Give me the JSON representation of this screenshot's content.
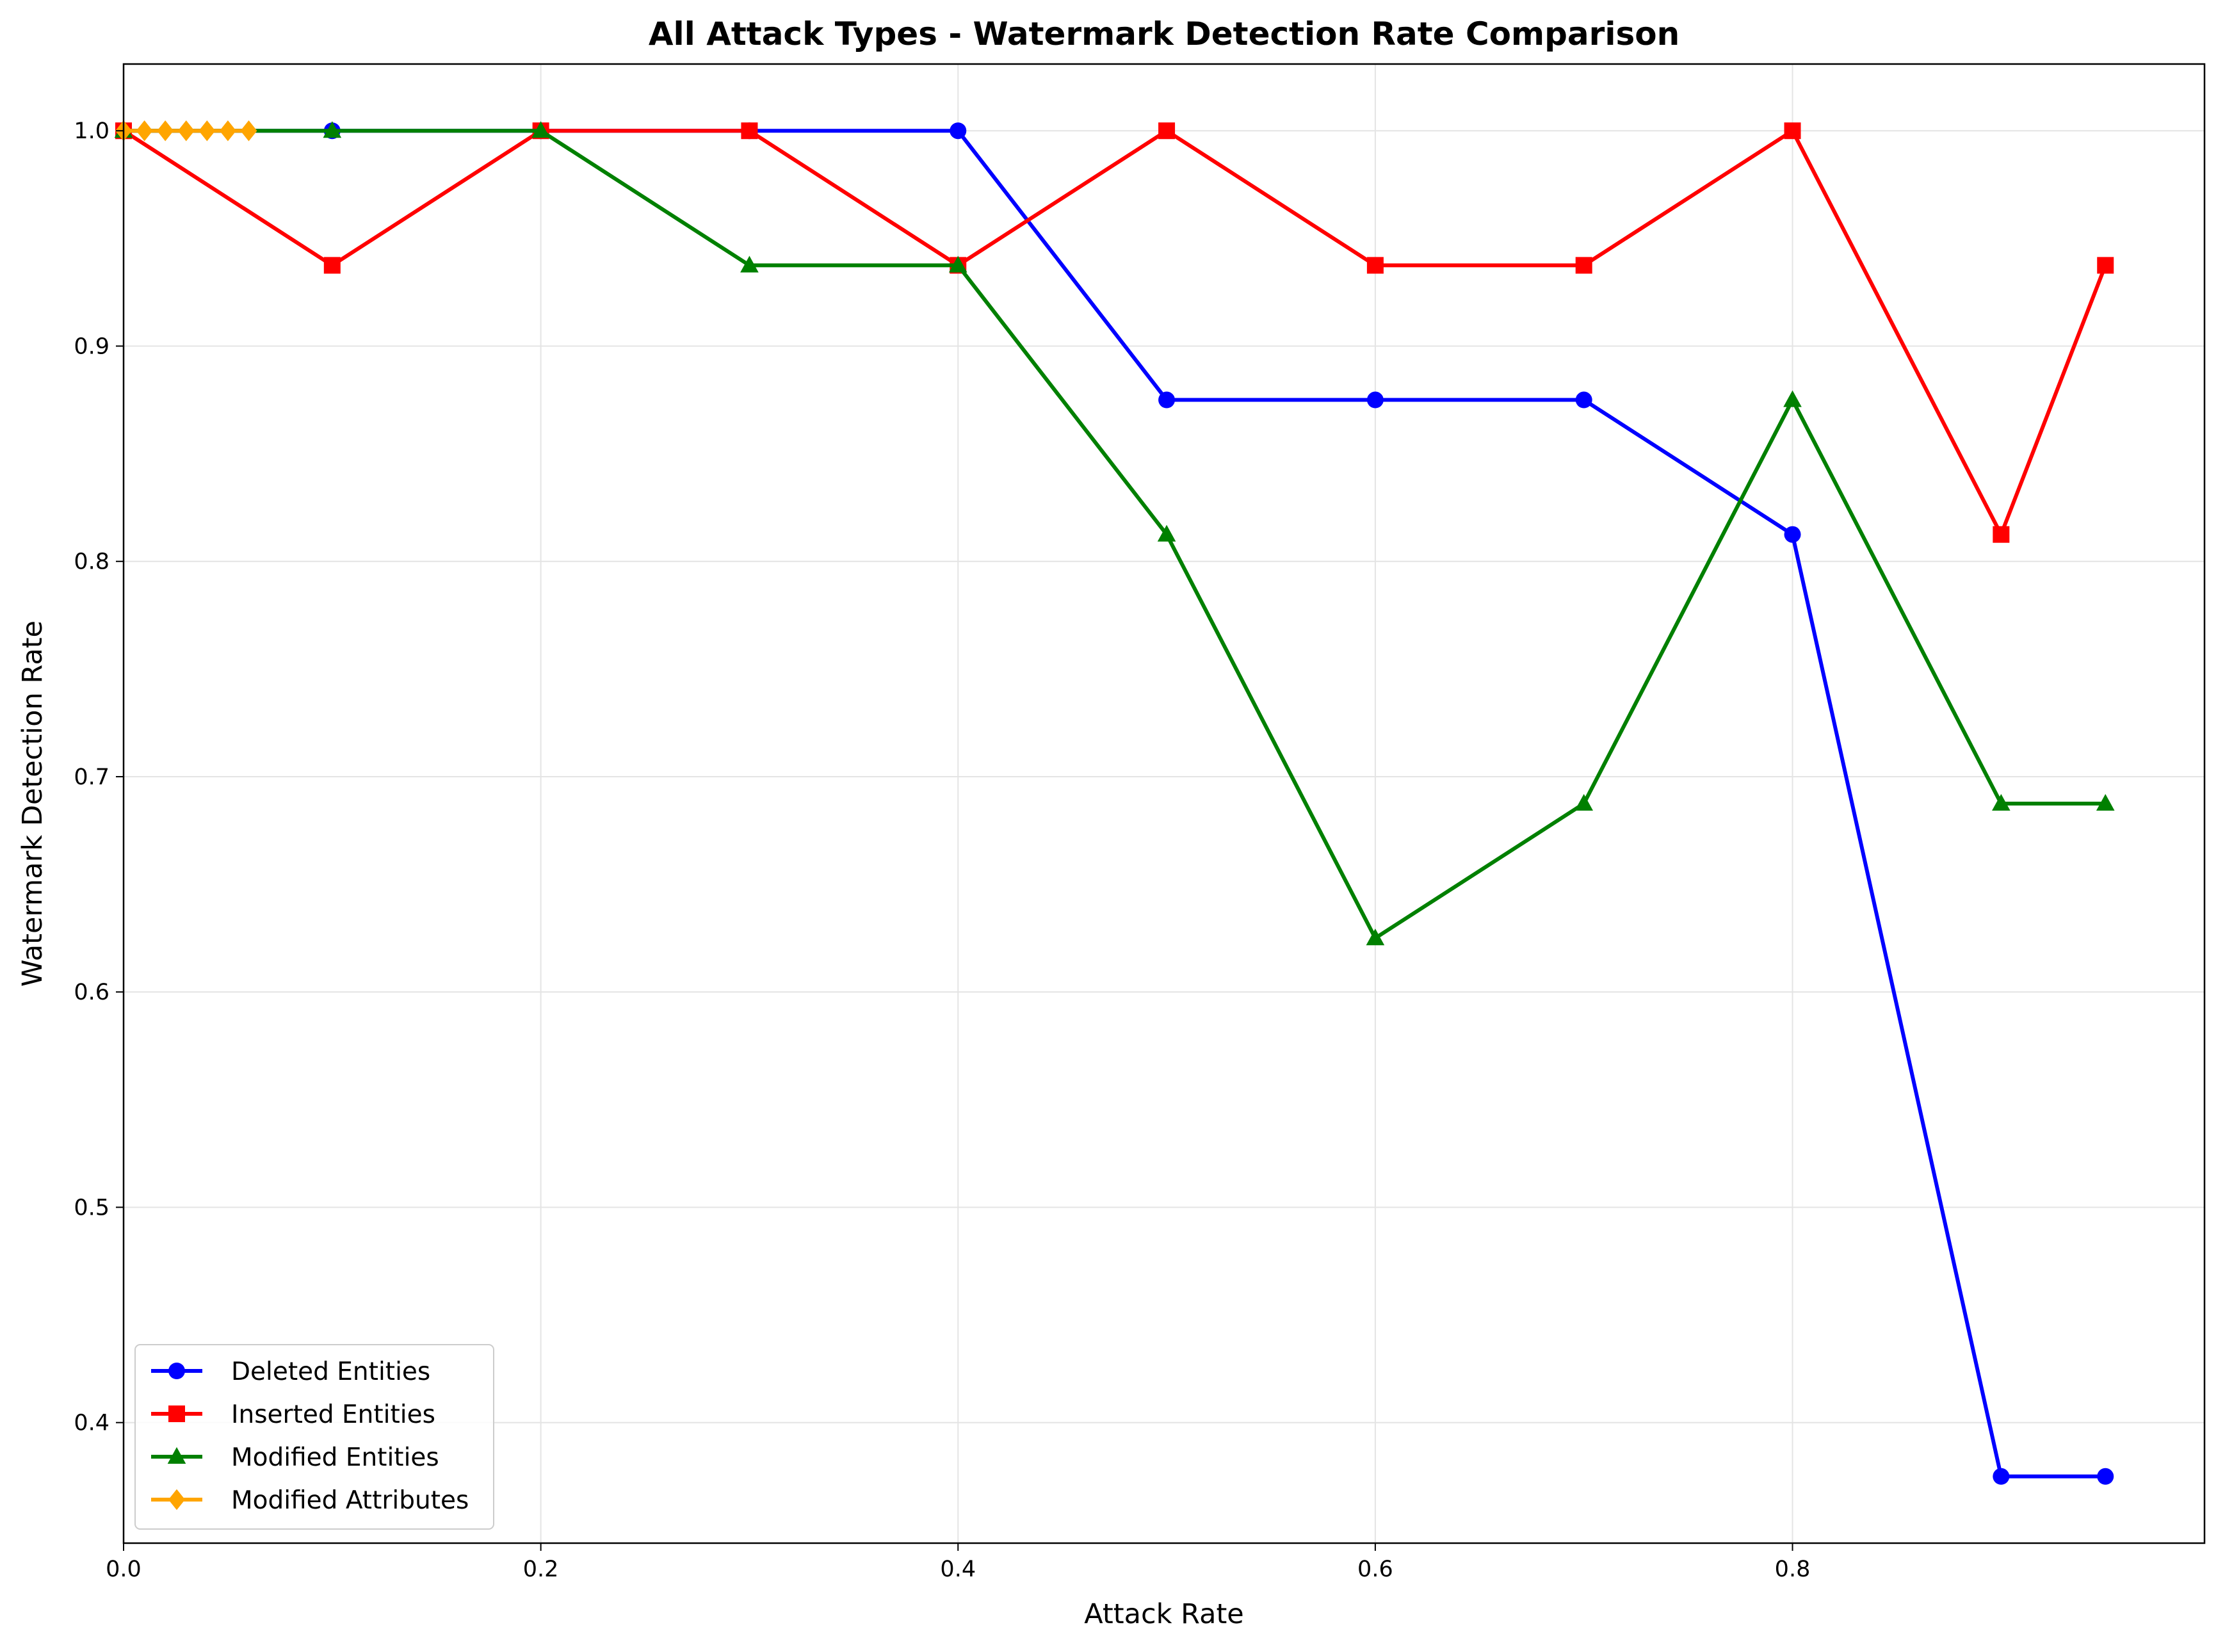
{
  "chart_data": {
    "type": "line",
    "title": "All Attack Types - Watermark Detection Rate Comparison",
    "xlabel": "Attack Rate",
    "ylabel": "Watermark Detection Rate",
    "xlim": [
      0.0,
      0.9975
    ],
    "ylim": [
      0.344,
      1.031
    ],
    "xticks": [
      0.0,
      0.2,
      0.4,
      0.6,
      0.8
    ],
    "xtick_labels": [
      "0.0",
      "0.2",
      "0.4",
      "0.6",
      "0.8"
    ],
    "yticks": [
      0.4,
      0.5,
      0.6,
      0.7,
      0.8,
      0.9,
      1.0
    ],
    "ytick_labels": [
      "0.4",
      "0.5",
      "0.6",
      "0.7",
      "0.8",
      "0.9",
      "1.0"
    ],
    "grid": true,
    "legend_position": "lower-left",
    "series": [
      {
        "name": "Deleted Entities",
        "color": "#0000ff",
        "marker": "circle",
        "x": [
          0.0,
          0.1,
          0.2,
          0.3,
          0.4,
          0.5,
          0.6,
          0.7,
          0.8,
          0.9,
          0.95
        ],
        "y": [
          1.0,
          1.0,
          1.0,
          1.0,
          1.0,
          0.875,
          0.875,
          0.875,
          0.8125,
          0.375,
          0.375
        ]
      },
      {
        "name": "Inserted Entities",
        "color": "#ff0000",
        "marker": "square",
        "x": [
          0.0,
          0.1,
          0.2,
          0.3,
          0.4,
          0.5,
          0.6,
          0.7,
          0.8,
          0.9,
          0.95
        ],
        "y": [
          1.0,
          0.9375,
          1.0,
          1.0,
          0.9375,
          1.0,
          0.9375,
          0.9375,
          1.0,
          0.8125,
          0.9375
        ]
      },
      {
        "name": "Modified Entities",
        "color": "#008000",
        "marker": "triangle",
        "x": [
          0.0,
          0.1,
          0.2,
          0.3,
          0.4,
          0.5,
          0.6,
          0.7,
          0.8,
          0.9,
          0.95
        ],
        "y": [
          1.0,
          1.0,
          1.0,
          0.9375,
          0.9375,
          0.8125,
          0.625,
          0.6875,
          0.875,
          0.6875,
          0.6875
        ]
      },
      {
        "name": "Modified Attributes",
        "color": "#ffa500",
        "marker": "diamond",
        "x": [
          0.0,
          0.01,
          0.02,
          0.03,
          0.04,
          0.05,
          0.06
        ],
        "y": [
          1.0,
          1.0,
          1.0,
          1.0,
          1.0,
          1.0,
          1.0
        ]
      }
    ]
  }
}
